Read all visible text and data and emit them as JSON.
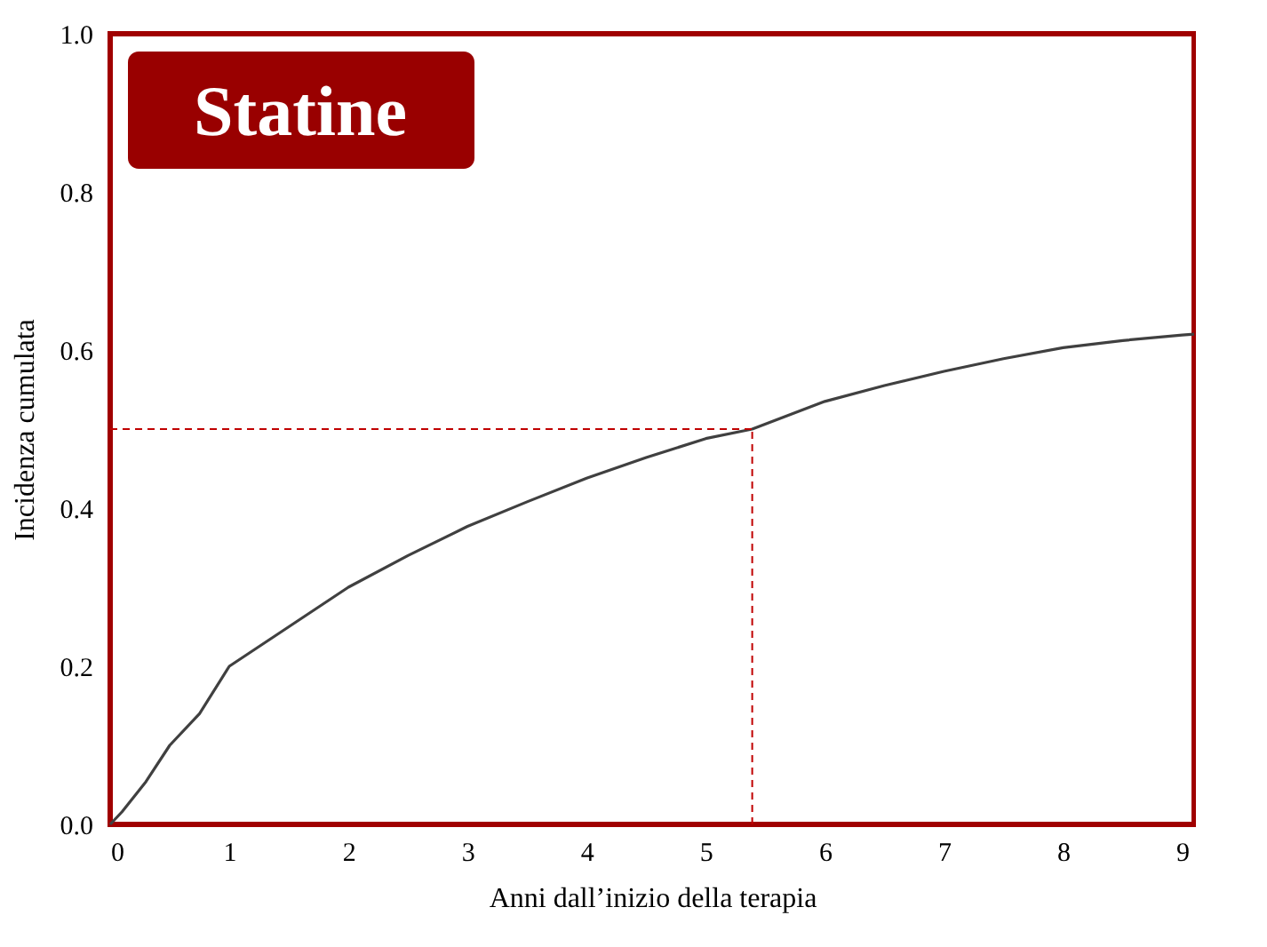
{
  "chart_data": {
    "type": "line",
    "title": "Statine",
    "xlabel": "Anni dall’inizio  della terapia",
    "ylabel": "Incidenza cumulata",
    "x": [
      0,
      0.1,
      0.3,
      0.5,
      0.75,
      1,
      1.5,
      2,
      2.5,
      3,
      3.5,
      4,
      4.5,
      5,
      5.39,
      6,
      6.5,
      7,
      7.5,
      8,
      8.5,
      9,
      9.1
    ],
    "series": [
      {
        "color": "#404040",
        "values": [
          0,
          0.016,
          0.054,
          0.1,
          0.14,
          0.2,
          0.25,
          0.3,
          0.34,
          0.377,
          0.408,
          0.438,
          0.464,
          0.488,
          0.5,
          0.535,
          0.555,
          0.573,
          0.589,
          0.603,
          0.612,
          0.619,
          0.62
        ]
      }
    ],
    "xlim": [
      0,
      9.1
    ],
    "xticks": [
      0,
      1,
      2,
      3,
      4,
      5,
      6,
      7,
      8,
      9
    ],
    "ylim": [
      0,
      1
    ],
    "yticks": [
      {
        "value": 0,
        "label": "0.0"
      },
      0.2,
      0.4,
      0.6,
      0.8,
      {
        "value": 1,
        "label": "1.0"
      }
    ],
    "ref_lines": [
      {
        "axis": "y",
        "value": 0.5,
        "color": "#c00000",
        "line_style": "dashed"
      },
      {
        "axis": "x",
        "value": 5.39,
        "color": "#c00000",
        "line_style": "dashed"
      }
    ],
    "grid": false,
    "marker": "none",
    "line_style": "solid"
  }
}
